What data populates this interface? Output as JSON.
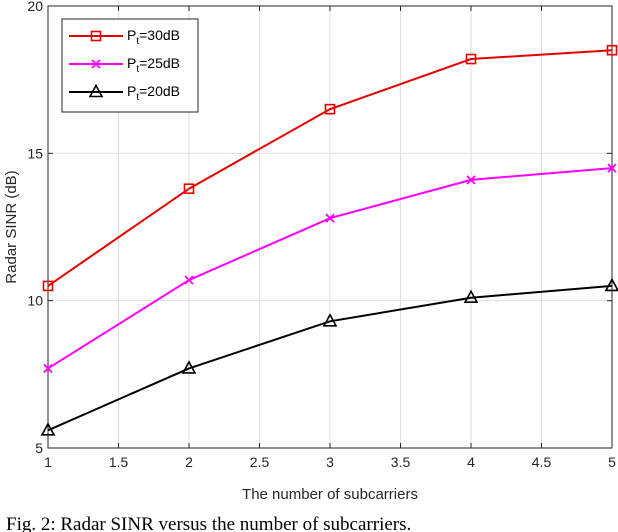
{
  "chart_data": {
    "type": "line",
    "title": "",
    "xlabel": "The number of subcarriers",
    "ylabel": "Radar SINR (dB)",
    "x": [
      1,
      2,
      3,
      4,
      5
    ],
    "xlim": [
      1,
      5
    ],
    "ylim": [
      5,
      20
    ],
    "xticks": [
      "1",
      "1.5",
      "2",
      "2.5",
      "3",
      "3.5",
      "4",
      "4.5",
      "5"
    ],
    "yticks": [
      "5",
      "10",
      "15",
      "20"
    ],
    "grid": true,
    "legend_position": "top-left",
    "series": [
      {
        "name_main": "P",
        "name_sub": "t",
        "name_rest": "=30dB",
        "values": [
          10.5,
          13.8,
          16.5,
          18.2,
          18.5
        ],
        "color": "#e60000",
        "marker": "square"
      },
      {
        "name_main": "P",
        "name_sub": "t",
        "name_rest": "=25dB",
        "values": [
          7.7,
          10.7,
          12.8,
          14.1,
          14.5
        ],
        "color": "#ff00ff",
        "marker": "x"
      },
      {
        "name_main": "P",
        "name_sub": "t",
        "name_rest": "=20dB",
        "values": [
          5.6,
          7.7,
          9.3,
          10.1,
          10.5
        ],
        "color": "#000000",
        "marker": "triangle"
      }
    ]
  },
  "caption": "Fig. 2: Radar SINR versus the number of subcarriers."
}
